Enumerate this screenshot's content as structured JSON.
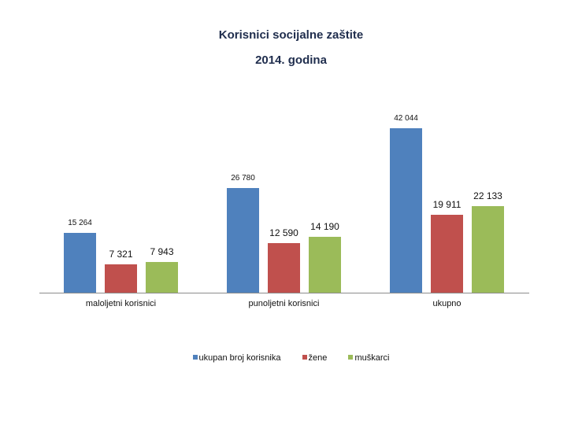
{
  "chart_data": {
    "type": "bar",
    "title": "Korisnici socijalne zaštite",
    "subtitle": "2014. godina",
    "categories": [
      "maloljetni korisnici",
      "punoljetni korisnici",
      "ukupno"
    ],
    "series": [
      {
        "name": "ukupan broj korisnika",
        "color": "#4f81bd",
        "values": [
          15264,
          26780,
          42044
        ],
        "labels": [
          "15 264",
          "26 780",
          "42 044"
        ]
      },
      {
        "name": "žene",
        "color": "#c0504d",
        "values": [
          7321,
          12590,
          19911
        ],
        "labels": [
          "7 321",
          "12 590",
          "19 911"
        ]
      },
      {
        "name": "muškarci",
        "color": "#9bbb59",
        "values": [
          7943,
          14190,
          22133
        ],
        "labels": [
          "7 943",
          "14 190",
          "22 133"
        ]
      }
    ],
    "xlabel": "",
    "ylabel": "",
    "ylim": [
      0,
      45000
    ],
    "grid": false,
    "legend_position": "bottom"
  }
}
